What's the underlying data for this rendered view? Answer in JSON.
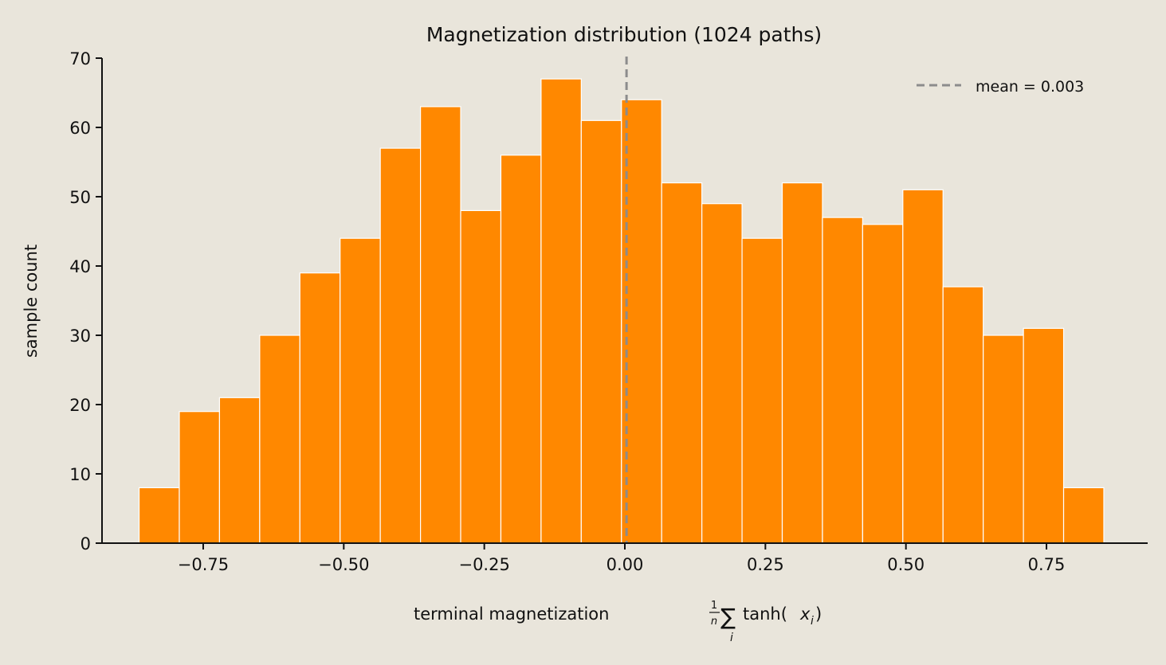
{
  "chart_data": {
    "type": "bar",
    "title": "Magnetization distribution  (1024 paths)",
    "xlabel_prefix": "terminal magnetization",
    "xlabel_frac_num": "1",
    "xlabel_frac_den": "n",
    "xlabel_sum": "∑",
    "xlabel_sum_index": "i",
    "xlabel_func": "tanh(",
    "xlabel_var": "x",
    "xlabel_var_sub": "i",
    "xlabel_close": ")",
    "ylabel": "sample count",
    "xlim": [
      -0.93,
      0.93
    ],
    "ylim": [
      0,
      70
    ],
    "x_ticks": [
      -0.75,
      -0.5,
      -0.25,
      0.0,
      0.25,
      0.5,
      0.75
    ],
    "x_tick_labels": [
      "−0.75",
      "−0.50",
      "−0.25",
      "0.00",
      "0.25",
      "0.50",
      "0.75"
    ],
    "y_ticks": [
      0,
      10,
      20,
      30,
      40,
      50,
      60,
      70
    ],
    "y_tick_labels": [
      "0",
      "10",
      "20",
      "30",
      "40",
      "50",
      "60",
      "70"
    ],
    "bin_edges": [
      -0.864,
      -0.7925,
      -0.721,
      -0.6495,
      -0.578,
      -0.5065,
      -0.435,
      -0.3635,
      -0.292,
      -0.2205,
      -0.149,
      -0.0775,
      -0.006,
      0.0655,
      0.137,
      0.2085,
      0.28,
      0.3515,
      0.423,
      0.4945,
      0.566,
      0.6375,
      0.709,
      0.7805,
      0.852
    ],
    "values": [
      8,
      19,
      21,
      30,
      39,
      44,
      57,
      63,
      48,
      56,
      67,
      61,
      64,
      52,
      49,
      44,
      52,
      47,
      46,
      51,
      37,
      30,
      31,
      8
    ],
    "mean": 0.003,
    "legend": {
      "label": "mean = 0.003",
      "placement": "top-right"
    },
    "grid": false,
    "colors": {
      "bar": "#ff8800",
      "bar_edge": "#ffffff",
      "mean_line": "#8c8c8c",
      "axis": "#111111",
      "background": "#e9e5db"
    }
  }
}
